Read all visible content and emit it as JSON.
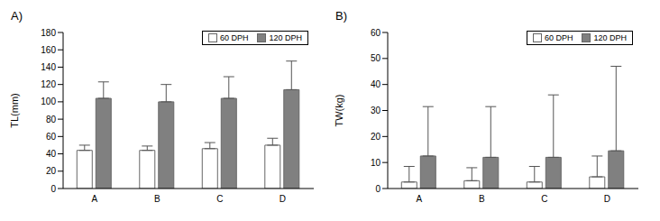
{
  "chart_data": [
    {
      "type": "bar",
      "title": "A)",
      "y_label": "TL(mm)",
      "categories": [
        "A",
        "B",
        "C",
        "D"
      ],
      "series": [
        {
          "name": "60 DPH",
          "color": "#ffffff",
          "values": [
            44,
            44,
            46,
            50
          ],
          "errors": [
            6,
            5,
            7,
            8
          ]
        },
        {
          "name": "120 DPH",
          "color": "#808080",
          "values": [
            104,
            100,
            104,
            114
          ],
          "errors": [
            19,
            20,
            25,
            33
          ]
        }
      ],
      "ylim": [
        0,
        180
      ],
      "yticks": [
        0,
        20,
        40,
        60,
        80,
        100,
        120,
        140,
        160,
        180
      ],
      "grid": false,
      "legend": "upper right"
    },
    {
      "type": "bar",
      "title": "B)",
      "y_label": "TW(kg)",
      "categories": [
        "A",
        "B",
        "C",
        "D"
      ],
      "series": [
        {
          "name": "60 DPH",
          "color": "#ffffff",
          "values": [
            2.5,
            3,
            2.5,
            4.5
          ],
          "errors": [
            6,
            5,
            6,
            8
          ]
        },
        {
          "name": "120 DPH",
          "color": "#808080",
          "values": [
            12.5,
            12,
            12,
            14.5
          ],
          "errors": [
            19,
            19.5,
            24,
            32.5
          ]
        }
      ],
      "ylim": [
        0,
        60
      ],
      "yticks": [
        0,
        10,
        20,
        30,
        40,
        50,
        60
      ],
      "grid": false,
      "legend": "upper right"
    }
  ]
}
